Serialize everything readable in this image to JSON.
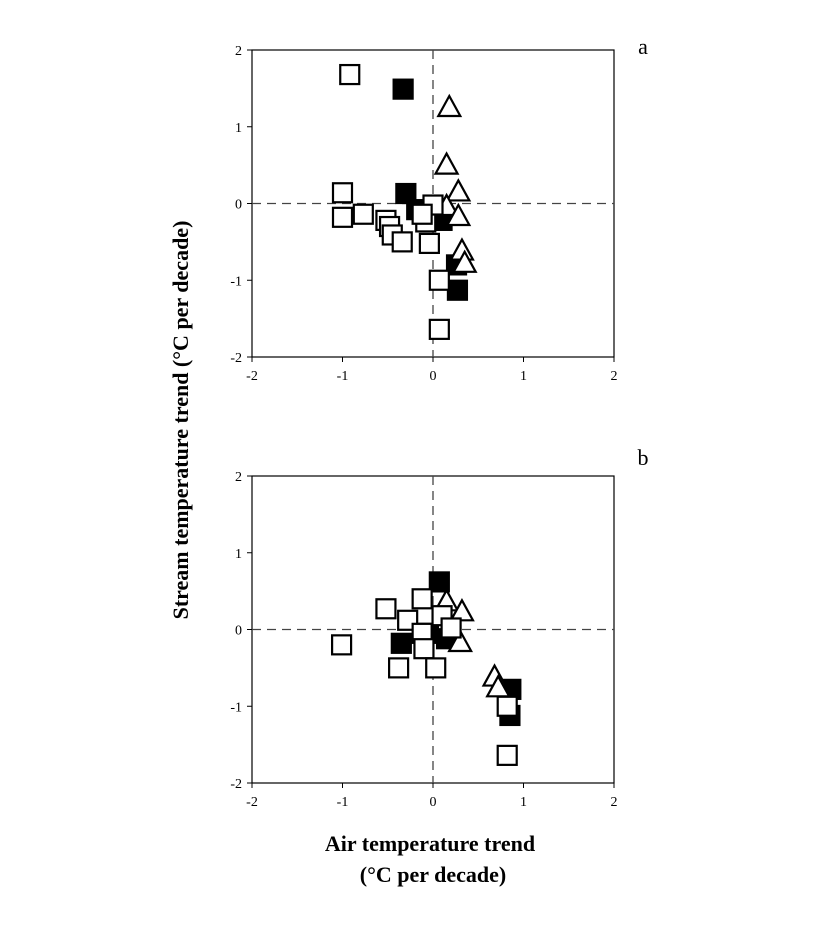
{
  "chart_data": [
    {
      "type": "scatter",
      "panel_label": "a",
      "xlim": [
        -2,
        2
      ],
      "ylim": [
        -2,
        2
      ],
      "xticks": [
        "-2",
        "-1",
        "0",
        "1",
        "2"
      ],
      "yticks": [
        "-2",
        "-1",
        "0",
        "1",
        "2"
      ],
      "reference_lines": "dashed at x=0 and y=0",
      "series": [
        {
          "marker": "open-square",
          "points": [
            [
              -0.92,
              1.68
            ],
            [
              -1.0,
              0.14
            ],
            [
              -1.0,
              -0.18
            ],
            [
              -0.77,
              -0.14
            ],
            [
              -0.52,
              -0.22
            ],
            [
              -0.48,
              -0.3
            ],
            [
              -0.45,
              -0.41
            ],
            [
              -0.34,
              -0.5
            ],
            [
              -0.08,
              -0.24
            ],
            [
              -0.04,
              -0.52
            ],
            [
              0.0,
              -0.02
            ],
            [
              0.07,
              -1.0
            ],
            [
              0.07,
              -1.64
            ],
            [
              -0.12,
              -0.14
            ]
          ]
        },
        {
          "marker": "filled-square",
          "points": [
            [
              -0.33,
              1.49
            ],
            [
              -0.3,
              0.13
            ],
            [
              -0.18,
              -0.08
            ],
            [
              0.1,
              -0.22
            ],
            [
              0.26,
              -0.8
            ],
            [
              0.27,
              -1.13
            ]
          ]
        },
        {
          "marker": "open-triangle",
          "points": [
            [
              0.18,
              1.27
            ],
            [
              0.15,
              0.52
            ],
            [
              0.28,
              0.17
            ],
            [
              0.15,
              -0.02
            ],
            [
              0.28,
              -0.15
            ],
            [
              0.32,
              -0.6
            ],
            [
              0.35,
              -0.76
            ]
          ]
        }
      ]
    },
    {
      "type": "scatter",
      "panel_label": "b",
      "xlim": [
        -2,
        2
      ],
      "ylim": [
        -2,
        2
      ],
      "xticks": [
        "-2",
        "-1",
        "0",
        "1",
        "2"
      ],
      "yticks": [
        "-2",
        "-1",
        "0",
        "1",
        "2"
      ],
      "reference_lines": "dashed at x=0 and y=0",
      "series": [
        {
          "marker": "open-square",
          "points": [
            [
              -1.01,
              -0.2
            ],
            [
              -0.52,
              0.27
            ],
            [
              -0.38,
              -0.5
            ],
            [
              -0.28,
              0.12
            ],
            [
              -0.12,
              -0.05
            ],
            [
              -0.1,
              -0.25
            ],
            [
              -0.12,
              0.4
            ],
            [
              0.03,
              -0.5
            ],
            [
              0.1,
              0.18
            ],
            [
              0.2,
              0.02
            ],
            [
              0.82,
              -1.0
            ],
            [
              0.82,
              -1.64
            ]
          ]
        },
        {
          "marker": "filled-square",
          "points": [
            [
              0.07,
              0.62
            ],
            [
              -0.35,
              -0.18
            ],
            [
              0.15,
              -0.12
            ],
            [
              -0.05,
              -0.05
            ],
            [
              0.86,
              -0.78
            ],
            [
              0.85,
              -1.12
            ]
          ]
        },
        {
          "marker": "open-triangle",
          "points": [
            [
              0.15,
              0.38
            ],
            [
              0.32,
              0.25
            ],
            [
              0.3,
              -0.15
            ],
            [
              0.68,
              -0.6
            ],
            [
              0.72,
              -0.74
            ]
          ]
        }
      ]
    }
  ],
  "labels": {
    "ylabel": "Stream temperature trend (°C per decade)",
    "xlabel_line1": "Air temperature trend",
    "xlabel_line2": "(°C per decade)"
  }
}
